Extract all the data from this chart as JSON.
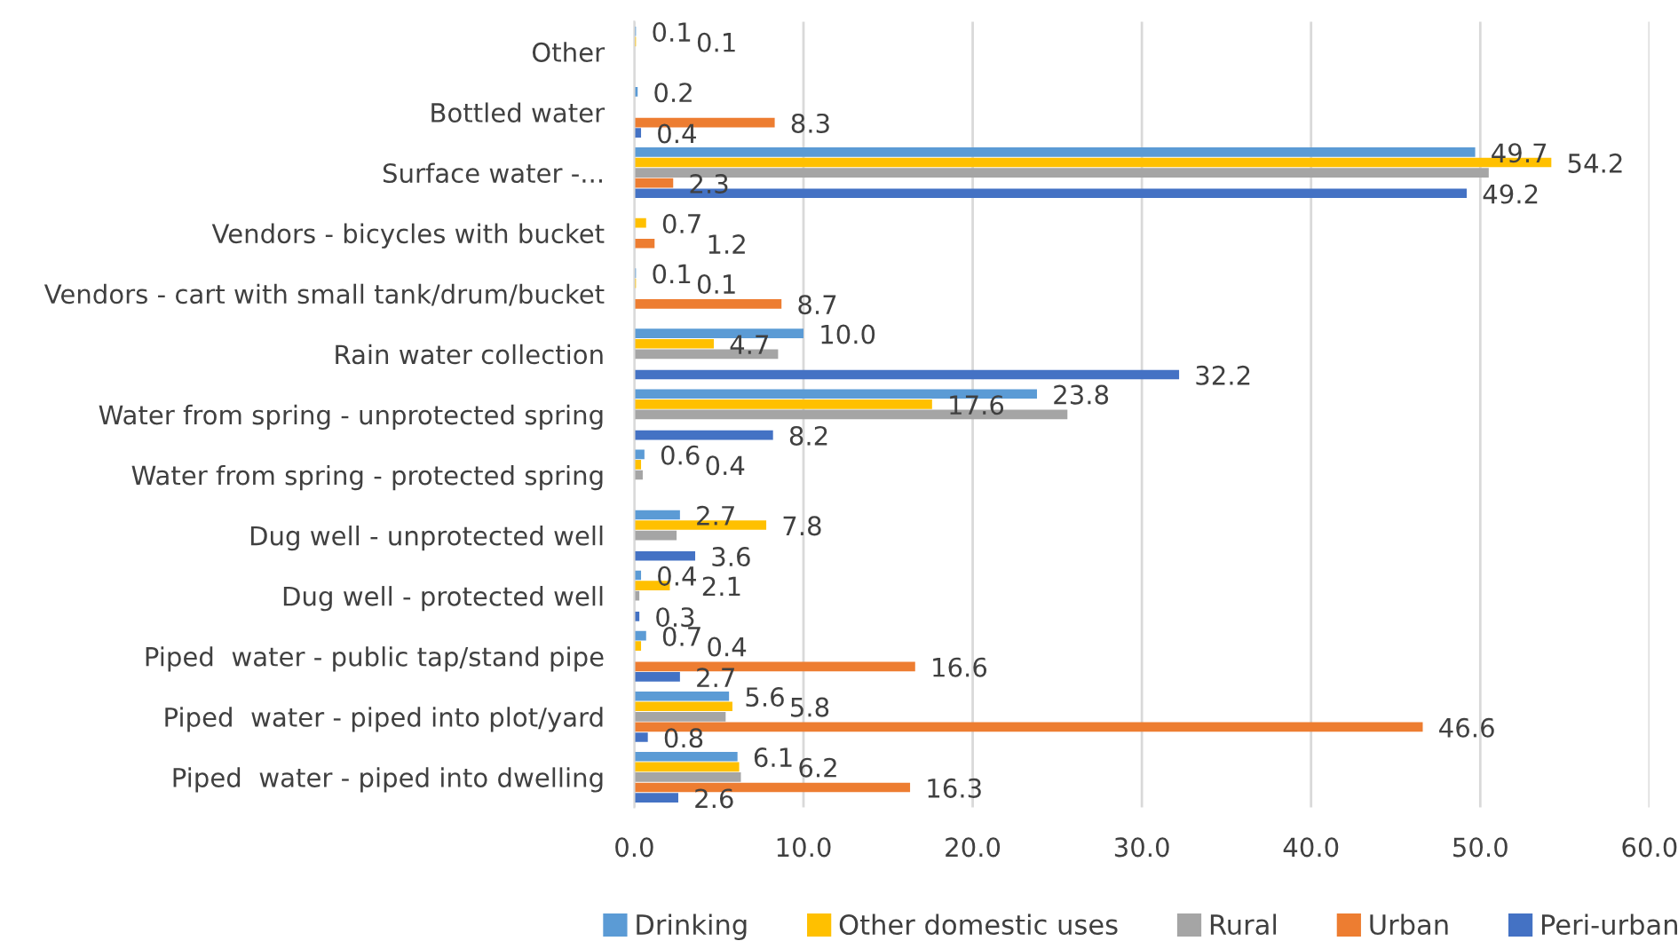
{
  "chart_data": {
    "type": "bar",
    "orientation": "horizontal",
    "categories": [
      "Other",
      "Bottled water",
      "Surface water -...",
      "Vendors - bicycles with bucket",
      "Vendors - cart with small tank/drum/bucket",
      "Rain water collection",
      "Water from spring - unprotected spring",
      "Water from spring - protected spring",
      "Dug well - unprotected well",
      "Dug well - protected well",
      "Piped  water - public tap/stand pipe",
      "Piped  water - piped into plot/yard",
      "Piped  water - piped into dwelling"
    ],
    "series": [
      {
        "name": "Drinking",
        "color": "#5b9bd5",
        "values": [
          0.1,
          0.2,
          49.7,
          null,
          0.1,
          10.0,
          23.8,
          0.6,
          2.7,
          0.4,
          0.7,
          5.6,
          6.1
        ],
        "value_labels": [
          "0.1",
          "0.2",
          "49.7",
          null,
          "0.1",
          "10.0",
          "23.8",
          "0.6",
          "2.7",
          "0.4",
          "0.7",
          "5.6",
          "6.1"
        ]
      },
      {
        "name": "Other domestic uses",
        "color": "#ffc000",
        "values": [
          0.1,
          null,
          54.2,
          0.7,
          0.1,
          4.7,
          17.6,
          0.4,
          7.8,
          2.1,
          0.4,
          5.8,
          6.2
        ],
        "value_labels": [
          "0.1",
          null,
          "54.2",
          "0.7",
          "0.1",
          "4.7",
          "17.6",
          "0.4",
          "7.8",
          "2.1",
          "0.4",
          "5.8",
          "6.2"
        ]
      },
      {
        "name": "Rural",
        "color": "#a5a5a5",
        "values": [
          null,
          null,
          50.5,
          null,
          null,
          8.5,
          25.6,
          0.5,
          2.5,
          0.3,
          null,
          5.4,
          6.3
        ]
      },
      {
        "name": "Urban",
        "color": "#ed7d31",
        "values": [
          null,
          8.3,
          2.3,
          1.2,
          8.7,
          null,
          null,
          null,
          null,
          null,
          16.6,
          46.6,
          16.3
        ],
        "value_labels": [
          null,
          "8.3",
          "2.3",
          "1.2",
          "8.7",
          null,
          null,
          null,
          null,
          null,
          "16.6",
          "46.6",
          "16.3"
        ]
      },
      {
        "name": "Peri-urban",
        "color": "#4472c4",
        "values": [
          null,
          0.4,
          49.2,
          null,
          null,
          32.2,
          8.2,
          null,
          3.6,
          0.3,
          2.7,
          0.8,
          2.6
        ],
        "value_labels": [
          null,
          "0.4",
          "49.2",
          null,
          null,
          "32.2",
          "8.2",
          null,
          "3.6",
          "0.3",
          "2.7",
          "0.8",
          "2.6"
        ]
      }
    ],
    "xlim": [
      0,
      60
    ],
    "xticks": [
      {
        "value": 0,
        "label": "0.0"
      },
      {
        "value": 10,
        "label": "10.0"
      },
      {
        "value": 20,
        "label": "20.0"
      },
      {
        "value": 30,
        "label": "30.0"
      },
      {
        "value": 40,
        "label": "40.0"
      },
      {
        "value": 50,
        "label": "50.0"
      },
      {
        "value": 60,
        "label": "60.0"
      }
    ],
    "grid": "x",
    "legend": "bottom"
  }
}
